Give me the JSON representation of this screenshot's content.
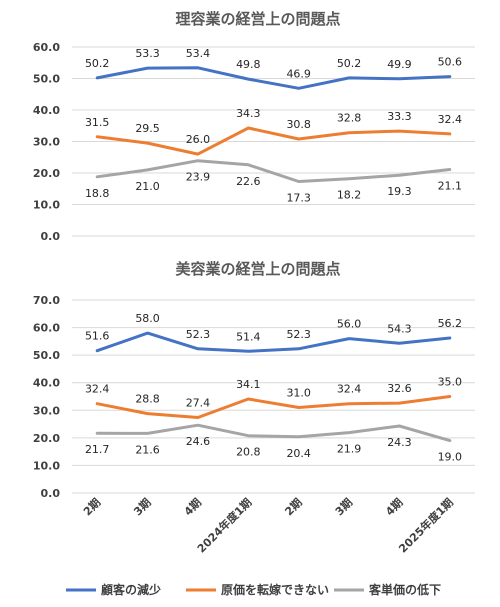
{
  "colors": {
    "series1": "#4472C4",
    "series2": "#ED7D31",
    "series3": "#A5A5A5",
    "grid": "#D9D9D9"
  },
  "legend": [
    "顧客の減少",
    "原価を転嫁できない",
    "客単価の低下"
  ],
  "chart_data": [
    {
      "type": "line",
      "title": "理容業の経営上の問題点",
      "categories": [
        "2期",
        "3期",
        "4期",
        "2024年度1期",
        "2期",
        "3期",
        "4期",
        "2025年度1期"
      ],
      "ylim": [
        0,
        60
      ],
      "yticks": [
        "0.0",
        "10.0",
        "20.0",
        "30.0",
        "40.0",
        "50.0",
        "60.0"
      ],
      "grid": true,
      "series": [
        {
          "name": "顧客の減少",
          "values": [
            50.2,
            53.3,
            53.4,
            49.8,
            46.9,
            50.2,
            49.9,
            50.6
          ],
          "labels": [
            "50.2",
            "53.3",
            "53.4",
            "49.8",
            "46.9",
            "50.2",
            "49.9",
            "50.6"
          ]
        },
        {
          "name": "原価を転嫁できない",
          "values": [
            31.5,
            29.5,
            26.0,
            34.3,
            30.8,
            32.8,
            33.3,
            32.4
          ],
          "labels": [
            "31.5",
            "29.5",
            "26.0",
            "34.3",
            "30.8",
            "32.8",
            "33.3",
            "32.4"
          ]
        },
        {
          "name": "客単価の低下",
          "values": [
            18.8,
            21.0,
            23.9,
            22.6,
            17.3,
            18.2,
            19.3,
            21.1
          ],
          "labels": [
            "18.8",
            "21.0",
            "23.9",
            "22.6",
            "17.3",
            "18.2",
            "19.3",
            "21.1"
          ]
        }
      ]
    },
    {
      "type": "line",
      "title": "美容業の経営上の問題点",
      "categories": [
        "2期",
        "3期",
        "4期",
        "2024年度1期",
        "2期",
        "3期",
        "4期",
        "2025年度1期"
      ],
      "ylim": [
        0,
        70
      ],
      "yticks": [
        "0.0",
        "10.0",
        "20.0",
        "30.0",
        "40.0",
        "50.0",
        "60.0",
        "70.0"
      ],
      "grid": true,
      "series": [
        {
          "name": "顧客の減少",
          "values": [
            51.6,
            58.0,
            52.3,
            51.4,
            52.3,
            56.0,
            54.3,
            56.2
          ],
          "labels": [
            "51.6",
            "58.0",
            "52.3",
            "51.4",
            "52.3",
            "56.0",
            "54.3",
            "56.2"
          ]
        },
        {
          "name": "原価を転嫁できない",
          "values": [
            32.4,
            28.8,
            27.4,
            34.1,
            31.0,
            32.4,
            32.6,
            35.0
          ],
          "labels": [
            "32.4",
            "28.8",
            "27.4",
            "34.1",
            "31.0",
            "32.4",
            "32.6",
            "35.0"
          ]
        },
        {
          "name": "客単価の低下",
          "values": [
            21.7,
            21.6,
            24.6,
            20.8,
            20.4,
            21.9,
            24.3,
            19.0
          ],
          "labels": [
            "21.7",
            "21.6",
            "24.6",
            "20.8",
            "20.4",
            "21.9",
            "24.3",
            "19.0"
          ]
        }
      ]
    }
  ]
}
